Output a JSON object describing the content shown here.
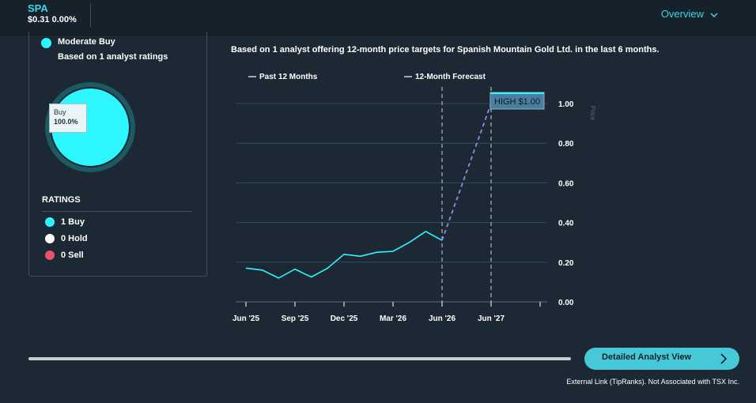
{
  "header": {
    "ticker": "SPA",
    "price_change": "$0.31 0.00%",
    "nav_label": "Overview"
  },
  "consensus": {
    "rating": "Moderate Buy",
    "subtitle": "Based on 1 analyst ratings",
    "tooltip_label": "Buy",
    "tooltip_value": "100.0%"
  },
  "ratings": {
    "title": "RATINGS",
    "items": [
      {
        "label": "1 Buy",
        "color": "#2ef6ff"
      },
      {
        "label": "0 Hold",
        "color": "#ffffff"
      },
      {
        "label": "0 Sell",
        "color": "#e8536b"
      }
    ]
  },
  "chart_desc": "Based on 1 analyst offering 12-month price targets for Spanish Mountain Gold Ltd. in the last 6 months.",
  "colors": {
    "accent": "#3ad6e6",
    "buy": "#2ef6ff",
    "forecast": "#8a8ce8"
  },
  "chart_data": {
    "type": "line",
    "legend": [
      "Past 12 Months",
      "12-Month Forecast"
    ],
    "x_ticks": [
      "Jun '25",
      "Sep '25",
      "Dec '25",
      "Mar '26",
      "Jun '26",
      "Jun '27"
    ],
    "y_ticks": [
      "0.00",
      "0.20",
      "0.40",
      "0.60",
      "0.80",
      "1.00"
    ],
    "ylim": [
      0,
      1.05
    ],
    "y_axis_label": "Price",
    "series": [
      {
        "name": "Past 12 Months",
        "values": [
          0.17,
          0.16,
          0.12,
          0.165,
          0.125,
          0.17,
          0.24,
          0.23,
          0.25,
          0.255,
          0.3,
          0.355,
          0.31
        ]
      },
      {
        "name": "12-Month Forecast",
        "values": [
          0.31,
          1.0
        ]
      }
    ],
    "annotation": "HIGH $1.00"
  },
  "detail_button": "Detailed Analyst View",
  "footnote": "External Link (TipRanks). Not Associated with TSX Inc."
}
